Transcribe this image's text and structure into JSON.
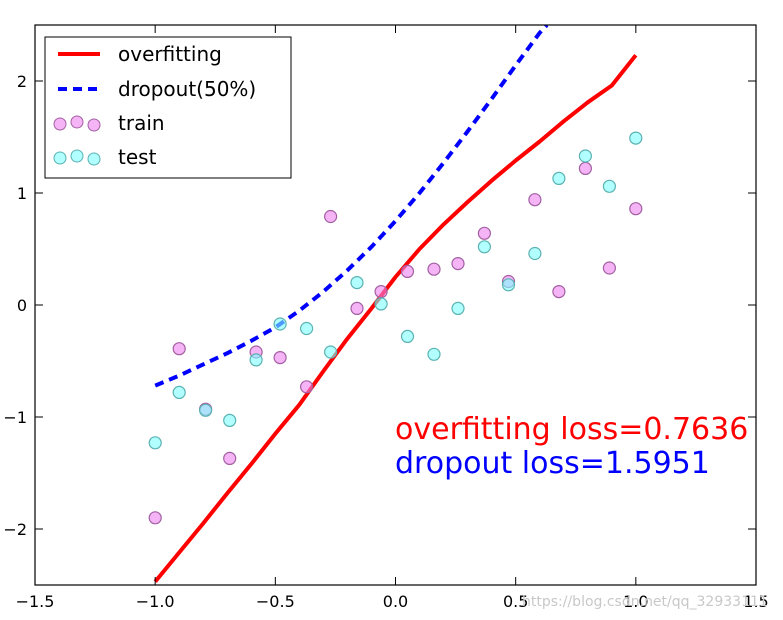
{
  "chart_data": {
    "type": "scatter",
    "xlim": [
      -1.5,
      1.5
    ],
    "ylim": [
      -2.5,
      2.5
    ],
    "xticks": [
      -1.5,
      -1.0,
      -0.5,
      0.0,
      0.5,
      1.0,
      1.5
    ],
    "xtick_labels": [
      "−1.5",
      "−1.0",
      "−0.5",
      "0.0",
      "0.5",
      "1.0",
      "1.5"
    ],
    "yticks": [
      2,
      1,
      0,
      -1,
      -2
    ],
    "ytick_labels": [
      "2",
      "1",
      "0",
      "−1",
      "−2"
    ],
    "grid": false,
    "legend_position": "top-left",
    "series": [
      {
        "name": "overfitting",
        "kind": "line",
        "color": "#ff0000",
        "x": [
          -1.0,
          -0.9,
          -0.8,
          -0.7,
          -0.6,
          -0.5,
          -0.4,
          -0.3,
          -0.2,
          -0.1,
          0.0,
          0.1,
          0.2,
          0.3,
          0.4,
          0.5,
          0.6,
          0.7,
          0.8,
          0.9,
          1.0
        ],
        "y": [
          -2.47,
          -2.21,
          -1.95,
          -1.68,
          -1.42,
          -1.15,
          -0.89,
          -0.59,
          -0.3,
          -0.03,
          0.25,
          0.5,
          0.72,
          0.92,
          1.11,
          1.29,
          1.46,
          1.64,
          1.81,
          1.96,
          2.23
        ]
      },
      {
        "name": "dropout(50%)",
        "kind": "dashed-line",
        "color": "#0000ff",
        "x": [
          -1.0,
          -0.9,
          -0.8,
          -0.7,
          -0.6,
          -0.5,
          -0.4,
          -0.3,
          -0.2,
          -0.1,
          0.0,
          0.1,
          0.2,
          0.3,
          0.4,
          0.5,
          0.6,
          0.63
        ],
        "y": [
          -0.72,
          -0.63,
          -0.53,
          -0.43,
          -0.32,
          -0.2,
          -0.05,
          0.12,
          0.31,
          0.52,
          0.75,
          1.0,
          1.27,
          1.55,
          1.84,
          2.14,
          2.43,
          2.5
        ]
      },
      {
        "name": "train",
        "kind": "scatter",
        "color": "#ee82ee",
        "edge": "#a260a2",
        "x": [
          -1.0,
          -0.9,
          -0.79,
          -0.69,
          -0.58,
          -0.48,
          -0.37,
          -0.27,
          -0.16,
          -0.06,
          0.05,
          0.16,
          0.26,
          0.37,
          0.47,
          0.58,
          0.68,
          0.79,
          0.89,
          1.0
        ],
        "y": [
          -1.9,
          -0.39,
          -0.93,
          -1.37,
          -0.42,
          -0.47,
          -0.73,
          0.79,
          -0.03,
          0.12,
          0.3,
          0.32,
          0.37,
          0.64,
          0.21,
          0.94,
          0.12,
          1.22,
          0.33,
          0.86
        ]
      },
      {
        "name": "test",
        "kind": "scatter",
        "color": "#7fffff",
        "edge": "#5ab2b2",
        "x": [
          -1.0,
          -0.9,
          -0.79,
          -0.69,
          -0.58,
          -0.48,
          -0.37,
          -0.27,
          -0.16,
          -0.06,
          0.05,
          0.16,
          0.26,
          0.37,
          0.47,
          0.58,
          0.68,
          0.79,
          0.89,
          1.0
        ],
        "y": [
          -1.23,
          -0.78,
          -0.94,
          -1.03,
          -0.49,
          -0.17,
          -0.21,
          -0.42,
          0.2,
          0.01,
          -0.28,
          -0.44,
          -0.03,
          0.52,
          0.18,
          0.46,
          1.13,
          1.33,
          1.06,
          1.49
        ]
      }
    ],
    "annotations": [
      {
        "text": "overfitting loss=0.7636",
        "color": "#ff0000"
      },
      {
        "text": "dropout loss=1.5951",
        "color": "#0000ff"
      }
    ]
  },
  "watermark": "https://blog.csdn.net/qq_32933111"
}
